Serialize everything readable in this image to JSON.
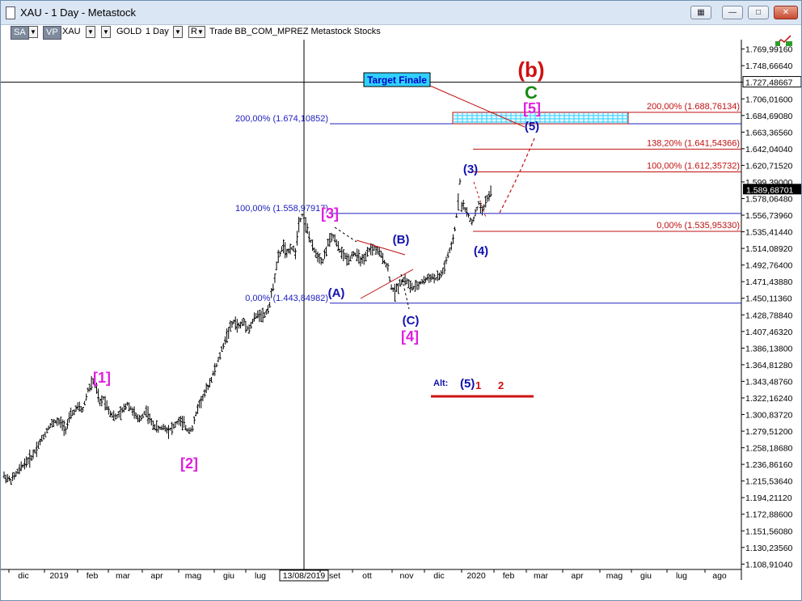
{
  "window": {
    "title": "XAU - 1 Day - Metastock",
    "controls": [
      "restore-alt",
      "minimize",
      "maximize",
      "close"
    ]
  },
  "toolbar": {
    "badge1": "SA",
    "badge2": "VP",
    "symbol": "XAU",
    "name": "GOLD",
    "period": "1 Day",
    "r_label": "R",
    "trade_text": "Trade  BB_COM_MPREZ  Metastock  Stocks"
  },
  "colors": {
    "up_price": "#000000",
    "wave_blue": "#1010b0",
    "wave_magenta": "#e020e0",
    "wave_red": "#d01010",
    "wave_green": "#1a8a1a",
    "fib_blue_line": "#2020c0",
    "fib_red_line": "#c01010",
    "target_box": "#30d0ff"
  },
  "chart_data": {
    "type": "ohlc",
    "symbol": "XAU",
    "grid": false,
    "y_axis": {
      "position": "right",
      "ticks": [
        "1.769,99160",
        "1.748,66640",
        "1.727,48667",
        "1.706,01600",
        "1.684,69080",
        "1.663,36560",
        "1.642,04040",
        "1.620,71520",
        "1.599,39000",
        "1.578,06480",
        "1.556,73960",
        "1.535,41440",
        "1.514,08920",
        "1.492,76400",
        "1.471,43880",
        "1.450,11360",
        "1.428,78840",
        "1.407,46320",
        "1.386,13800",
        "1.364,81280",
        "1.343,48760",
        "1.322,16240",
        "1.300,83720",
        "1.279,51200",
        "1.258,18680",
        "1.236,86160",
        "1.215,53640",
        "1.194,21120",
        "1.172,88600",
        "1.151,56080",
        "1.130,23560",
        "1.108,91040"
      ],
      "tick_values": [
        1769.9916,
        1748.6664,
        1727.48667,
        1706.016,
        1684.6908,
        1663.3656,
        1642.0404,
        1620.7152,
        1599.39,
        1578.0648,
        1556.7396,
        1535.4144,
        1514.0892,
        1492.764,
        1471.4388,
        1450.1136,
        1428.7884,
        1407.4632,
        1386.138,
        1364.8128,
        1343.4876,
        1322.1624,
        1300.8372,
        1279.512,
        1258.1868,
        1236.8616,
        1215.5364,
        1194.2112,
        1172.886,
        1151.5608,
        1130.2356,
        1108.9104
      ],
      "min": 1108.9104,
      "max": 1780,
      "crosshair_value": "1.727,48667",
      "last_price_label": "1.589,68701",
      "last_price": 1589.68701
    },
    "x_axis": {
      "labels": [
        "dic",
        "2019",
        "feb",
        "mar",
        "apr",
        "mag",
        "giu",
        "lug",
        "13/08/2019",
        "set",
        "ott",
        "nov",
        "dic",
        "2020",
        "feb",
        "mar",
        "apr",
        "mag",
        "giu",
        "lug",
        "ago"
      ],
      "crosshair_label": "13/08/2019"
    },
    "price_path": [
      [
        0,
        1222
      ],
      [
        4,
        1216
      ],
      [
        8,
        1227
      ],
      [
        12,
        1238
      ],
      [
        16,
        1246
      ],
      [
        20,
        1262
      ],
      [
        24,
        1276
      ],
      [
        26,
        1285
      ],
      [
        30,
        1292
      ],
      [
        33,
        1290
      ],
      [
        36,
        1283
      ],
      [
        39,
        1300
      ],
      [
        43,
        1310
      ],
      [
        46,
        1307
      ],
      [
        49,
        1332
      ],
      [
        52,
        1343
      ],
      [
        54,
        1333
      ],
      [
        56,
        1315
      ],
      [
        58,
        1322
      ],
      [
        62,
        1303
      ],
      [
        65,
        1297
      ],
      [
        68,
        1302
      ],
      [
        72,
        1315
      ],
      [
        75,
        1306
      ],
      [
        78,
        1294
      ],
      [
        80,
        1297
      ],
      [
        83,
        1306
      ],
      [
        86,
        1290
      ],
      [
        90,
        1282
      ],
      [
        93,
        1285
      ],
      [
        96,
        1281
      ],
      [
        99,
        1285
      ],
      [
        102,
        1293
      ],
      [
        105,
        1288
      ],
      [
        107,
        1281
      ],
      [
        110,
        1283
      ],
      [
        113,
        1310
      ],
      [
        117,
        1327
      ],
      [
        121,
        1347
      ],
      [
        125,
        1370
      ],
      [
        128,
        1390
      ],
      [
        131,
        1408
      ],
      [
        134,
        1420
      ],
      [
        137,
        1414
      ],
      [
        140,
        1420
      ],
      [
        143,
        1410
      ],
      [
        146,
        1425
      ],
      [
        149,
        1430
      ],
      [
        152,
        1428
      ],
      [
        155,
        1442
      ],
      [
        158,
        1478
      ],
      [
        160,
        1502
      ],
      [
        163,
        1518
      ],
      [
        165,
        1505
      ],
      [
        167,
        1516
      ],
      [
        170,
        1510
      ],
      [
        172,
        1547
      ],
      [
        174,
        1557
      ],
      [
        176,
        1545
      ],
      [
        178,
        1530
      ],
      [
        180,
        1515
      ],
      [
        183,
        1505
      ],
      [
        186,
        1498
      ],
      [
        189,
        1520
      ],
      [
        192,
        1530
      ],
      [
        195,
        1515
      ],
      [
        198,
        1505
      ],
      [
        201,
        1500
      ],
      [
        204,
        1508
      ],
      [
        207,
        1502
      ],
      [
        210,
        1497
      ],
      [
        213,
        1512
      ],
      [
        216,
        1514
      ],
      [
        219,
        1508
      ],
      [
        222,
        1498
      ],
      [
        224,
        1488
      ],
      [
        226,
        1464
      ],
      [
        228,
        1458
      ],
      [
        231,
        1470
      ],
      [
        234,
        1475
      ],
      [
        237,
        1465
      ],
      [
        240,
        1463
      ],
      [
        243,
        1470
      ],
      [
        246,
        1474
      ],
      [
        249,
        1478
      ],
      [
        252,
        1475
      ],
      [
        255,
        1480
      ],
      [
        257,
        1490
      ],
      [
        259,
        1505
      ],
      [
        261,
        1515
      ],
      [
        263,
        1538
      ],
      [
        265,
        1575
      ],
      [
        266,
        1600
      ],
      [
        267,
        1570
      ],
      [
        269,
        1565
      ],
      [
        271,
        1555
      ],
      [
        273,
        1548
      ],
      [
        275,
        1558
      ],
      [
        277,
        1572
      ],
      [
        279,
        1560
      ],
      [
        281,
        1575
      ],
      [
        283,
        1582
      ],
      [
        285,
        1590
      ]
    ],
    "fib_levels": [
      {
        "label": "200,00% (1.674,10852)",
        "value": 1674.10852,
        "color": "blue"
      },
      {
        "label": "100,00% (1.558,97917)",
        "value": 1558.97917,
        "color": "blue"
      },
      {
        "label": "0,00% (1.443,84982)",
        "value": 1443.84982,
        "color": "blue"
      },
      {
        "label": "200,00% (1.688,76134)",
        "value": 1688.76134,
        "color": "red"
      },
      {
        "label": "138,20% (1.641,54366)",
        "value": 1641.54366,
        "color": "red"
      },
      {
        "label": "100,00% (1.612,35732)",
        "value": 1612.35732,
        "color": "red"
      },
      {
        "label": "0,00% (1.535,95330)",
        "value": 1535.9533,
        "color": "red"
      }
    ],
    "wave_labels": [
      {
        "text": "(b)",
        "color": "red"
      },
      {
        "text": "C",
        "color": "green"
      },
      {
        "text": "[5]",
        "color": "magenta"
      },
      {
        "text": "(5)",
        "color": "blue"
      },
      {
        "text": "(3)",
        "color": "blue"
      },
      {
        "text": "(4)",
        "color": "blue"
      },
      {
        "text": "[3]",
        "color": "magenta"
      },
      {
        "text": "(B)",
        "color": "blue"
      },
      {
        "text": "(A)",
        "color": "blue"
      },
      {
        "text": "(C)",
        "color": "blue"
      },
      {
        "text": "[4]",
        "color": "magenta"
      },
      {
        "text": "[1]",
        "color": "magenta"
      },
      {
        "text": "[2]",
        "color": "magenta"
      }
    ],
    "annotations": {
      "target_box_label": "Target Finale",
      "alt_label": "Alt:",
      "alt_wave": "(5)",
      "alt_num1": "1",
      "alt_num2": "2"
    }
  }
}
